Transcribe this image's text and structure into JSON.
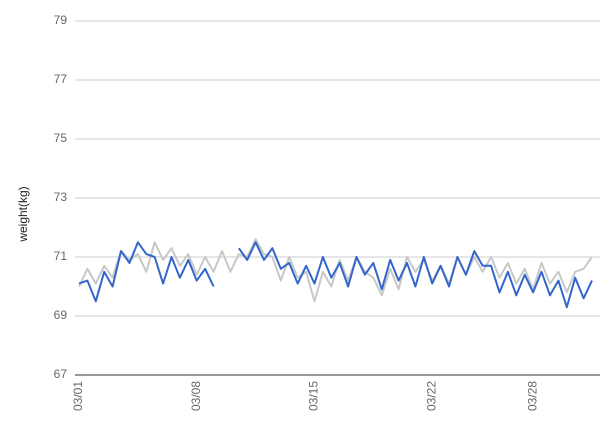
{
  "chart_data": {
    "type": "line",
    "y_label": "weight(kg)",
    "categories": [
      "03/01",
      null,
      null,
      null,
      null,
      null,
      null,
      null,
      null,
      null,
      null,
      null,
      null,
      null,
      "03/08",
      null,
      null,
      null,
      null,
      null,
      null,
      null,
      null,
      null,
      null,
      null,
      null,
      null,
      "03/15",
      null,
      null,
      null,
      null,
      null,
      null,
      null,
      null,
      null,
      null,
      null,
      null,
      null,
      "03/22",
      null,
      null,
      null,
      null,
      null,
      null,
      null,
      null,
      null,
      null,
      null,
      "03/28",
      null,
      null,
      null,
      null,
      null,
      null,
      null
    ],
    "series": [
      {
        "color": "#c8c8c8",
        "values": [
          70.0,
          70.6,
          70.1,
          70.7,
          70.3,
          71.2,
          70.9,
          71.1,
          70.5,
          71.5,
          70.9,
          71.3,
          70.7,
          71.1,
          70.4,
          71.0,
          70.5,
          71.2,
          70.5,
          71.1,
          71.0,
          71.6,
          71.1,
          71.0,
          70.2,
          71.0,
          70.3,
          70.5,
          69.5,
          70.5,
          70.0,
          70.9,
          70.2,
          71.0,
          70.5,
          70.3,
          69.7,
          70.6,
          69.9,
          71.0,
          70.5,
          70.9,
          70.2,
          70.7,
          70.1,
          71.0,
          70.4,
          71.0,
          70.5,
          71.0,
          70.3,
          70.8,
          70.1,
          70.6,
          69.9,
          70.8,
          70.1,
          70.5,
          69.8,
          70.5,
          70.6,
          71.0
        ]
      },
      {
        "color": "#3366cc",
        "values": [
          70.1,
          70.2,
          69.5,
          70.5,
          70.0,
          71.2,
          70.8,
          71.5,
          71.1,
          71.0,
          70.1,
          71.0,
          70.3,
          70.9,
          70.2,
          70.6,
          70.0,
          null,
          null,
          71.3,
          70.9,
          71.5,
          70.9,
          71.3,
          70.6,
          70.8,
          70.1,
          70.7,
          70.1,
          71.0,
          70.3,
          70.8,
          70.0,
          71.0,
          70.4,
          70.8,
          69.9,
          70.9,
          70.2,
          70.8,
          70.0,
          71.0,
          70.1,
          70.7,
          70.0,
          71.0,
          70.4,
          71.2,
          70.7,
          70.7,
          69.8,
          70.5,
          69.7,
          70.4,
          69.8,
          70.5,
          69.7,
          70.2,
          69.3,
          70.3,
          69.6,
          70.2
        ]
      }
    ],
    "ylim": [
      67,
      79
    ],
    "yticks": [
      67,
      69,
      71,
      73,
      75,
      77,
      79
    ],
    "grid": true
  }
}
